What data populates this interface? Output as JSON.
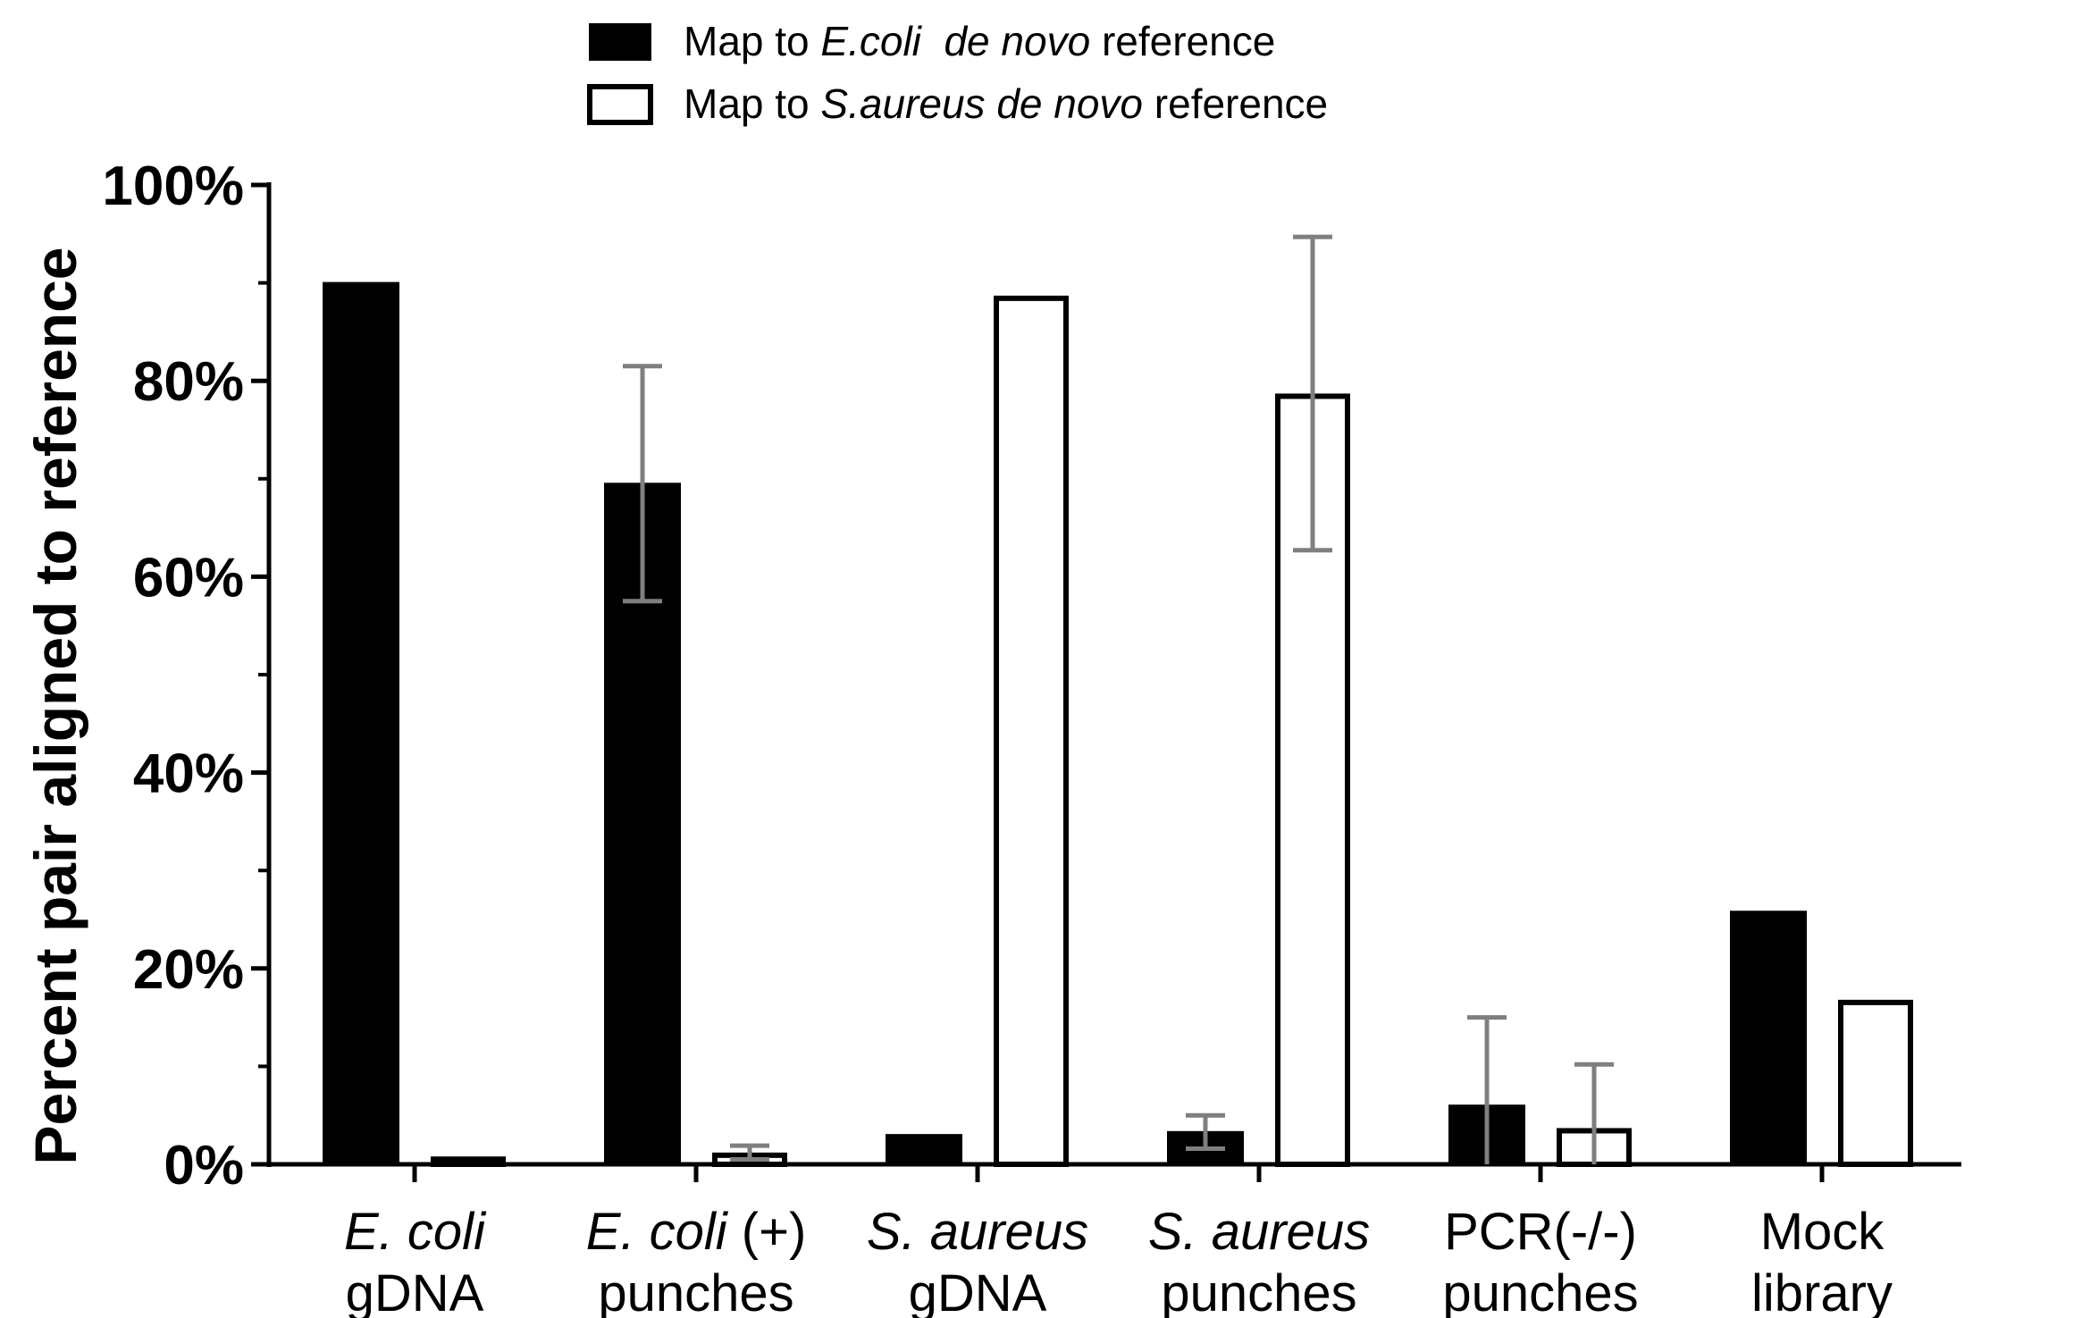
{
  "chart_data": {
    "type": "bar",
    "title": "",
    "xlabel": "",
    "ylabel": "Percent pair aligned to reference",
    "ylim": [
      0,
      100
    ],
    "y_ticks": [
      "0%",
      "20%",
      "40%",
      "60%",
      "80%",
      "100%"
    ],
    "grid": false,
    "legend_position": "top-center",
    "categories": [
      {
        "line1": "E. coli",
        "line1_italic": "E. coli",
        "line1_rest": "",
        "line2": "gDNA"
      },
      {
        "line1": "E. coli (+)",
        "line1_italic": "E. coli",
        "line1_rest": " (+)",
        "line2": "punches"
      },
      {
        "line1": "S. aureus",
        "line1_italic": "S. aureus",
        "line1_rest": "",
        "line2": "gDNA"
      },
      {
        "line1": "S. aureus",
        "line1_italic": "S. aureus",
        "line1_rest": "",
        "line2": "punches"
      },
      {
        "line1": "PCR(-/-)",
        "line1_italic": "",
        "line1_rest": "PCR(-/-)",
        "line2": "punches"
      },
      {
        "line1": "Mock",
        "line1_italic": "",
        "line1_rest": "Mock",
        "line2": "library"
      }
    ],
    "series": [
      {
        "legend": {
          "pre": "Map to ",
          "italic": "E.coli  de novo",
          "post": " reference"
        },
        "fill": "#000000",
        "values": [
          90,
          69.5,
          3,
          3.3,
          6,
          25.8
        ],
        "errors": [
          null,
          12,
          null,
          1.7,
          9,
          null
        ]
      },
      {
        "legend": {
          "pre": "Map to ",
          "italic": "S.aureus de novo",
          "post": " reference"
        },
        "fill": "#ffffff",
        "values": [
          0.8,
          1.2,
          88.7,
          78.7,
          3.7,
          16.8
        ],
        "errors": [
          null,
          0.7,
          null,
          16,
          6.5,
          null
        ]
      }
    ]
  },
  "colors": {
    "bar_outline": "#000000",
    "error_bar": "#7f7f7f"
  }
}
